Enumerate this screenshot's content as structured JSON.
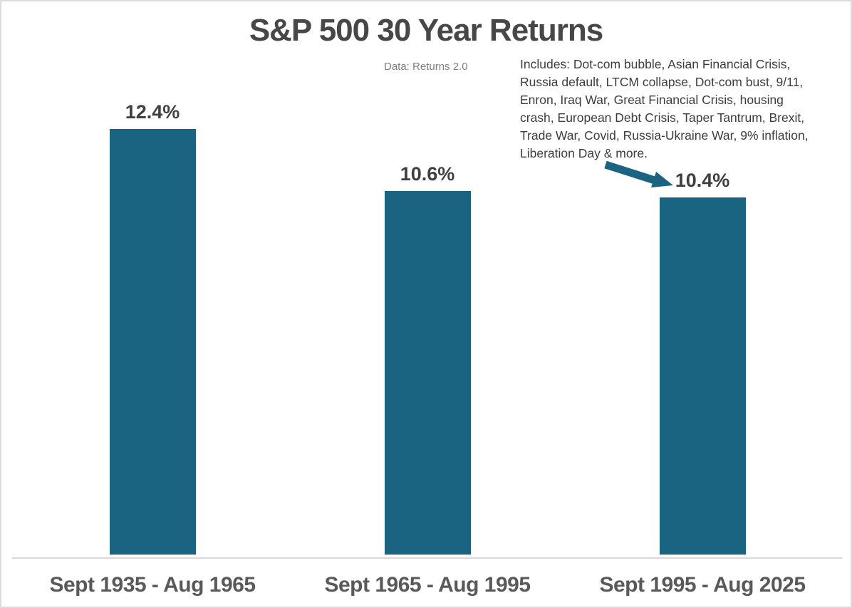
{
  "title": "S&P 500 30 Year Returns",
  "data_note": "Data: Returns 2.0",
  "annotation": {
    "text": "Includes: Dot-com bubble, Asian Financial Crisis,\nRussia default, LTCM collapse, Dot-com bust, 9/11,\nEnron, Iraq War, Great Financial Crisis, housing\ncrash, European Debt Crisis, Taper Tantrum, Brexit,\nTrade War, Covid, Russia-Ukraine War, 9% inflation,\nLiberation Day & more."
  },
  "colors": {
    "bar_fill": "#1b6481",
    "arrow": "#1b6481",
    "title_text": "#474747",
    "value_label_text": "#3f3f3f",
    "category_label_text": "#595959",
    "note_text": "#7f7f7f",
    "axis_line": "#d9d9d9",
    "background": "#ffffff"
  },
  "chart_data": {
    "type": "bar",
    "title": "S&P 500 30 Year Returns",
    "categories": [
      "Sept 1935 - Aug 1965",
      "Sept 1965 - Aug 1995",
      "Sept 1995 - Aug 2025"
    ],
    "values": [
      12.4,
      10.6,
      10.4
    ],
    "value_labels": [
      "12.4%",
      "10.6%",
      "10.4%"
    ],
    "xlabel": "",
    "ylabel": "",
    "ylim": [
      0,
      14
    ],
    "grid": false,
    "legend": false,
    "annotations": [
      "Data: Returns 2.0",
      "Includes: Dot-com bubble, Asian Financial Crisis, Russia default, LTCM collapse, Dot-com bust, 9/11, Enron, Iraq War, Great Financial Crisis, housing crash, European Debt Crisis, Taper Tantrum, Brexit, Trade War, Covid, Russia-Ukraine War, 9% inflation, Liberation Day & more."
    ]
  }
}
